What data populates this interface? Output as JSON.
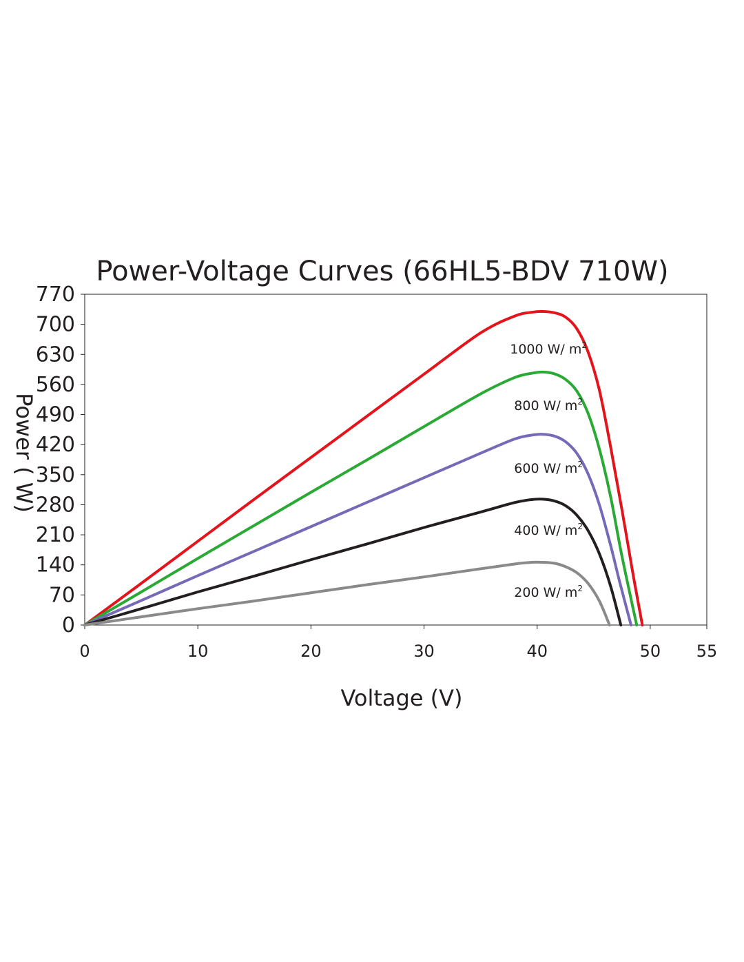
{
  "chart_data": {
    "type": "line",
    "title": "Power-Voltage Curves (66HL5-BDV 710W)",
    "xlabel": "Voltage (V)",
    "ylabel": "Power ( W)",
    "xlim": [
      0,
      55
    ],
    "ylim": [
      0,
      770
    ],
    "xticks": [
      0,
      10,
      20,
      30,
      40,
      50,
      55
    ],
    "yticks": [
      0,
      70,
      140,
      210,
      280,
      350,
      420,
      490,
      560,
      630,
      700,
      770
    ],
    "grid": false,
    "legend": "inline labels",
    "series": [
      {
        "name": "1000 W/ m2",
        "label_main": "1000 W/ m",
        "label_sup": "2",
        "label_at": [
          41.0,
          643
        ],
        "color": "#e3141c",
        "x": [
          0,
          5,
          10,
          15,
          20,
          25,
          30,
          35,
          38,
          39.5,
          40.5,
          41.5,
          42.5,
          43.5,
          44.5,
          45.5,
          46.5,
          47.5,
          48.5,
          49.3
        ],
        "y": [
          0,
          97,
          195,
          293,
          390,
          487,
          584,
          680,
          719,
          728,
          730,
          727,
          717,
          690,
          636,
          547,
          414,
          268,
          115,
          0
        ]
      },
      {
        "name": "800 W/ m2",
        "label_main": "800 W/ m",
        "label_sup": "2",
        "label_at": [
          41.0,
          512
        ],
        "color": "#2aa935",
        "x": [
          0,
          5,
          10,
          15,
          20,
          25,
          30,
          35,
          38,
          39.5,
          40.5,
          41.5,
          42.5,
          43.5,
          44.5,
          45.5,
          46.5,
          47.5,
          48.8
        ],
        "y": [
          0,
          77,
          155,
          232,
          309,
          385,
          462,
          538,
          576,
          586,
          589,
          585,
          572,
          545,
          493,
          410,
          298,
          160,
          0
        ]
      },
      {
        "name": "600 W/ m2",
        "label_main": "600 W/ m",
        "label_sup": "2",
        "label_at": [
          41.0,
          366
        ],
        "color": "#7669b8",
        "x": [
          0,
          5,
          10,
          15,
          20,
          25,
          30,
          35,
          38,
          39.5,
          40.5,
          41.5,
          42.5,
          43.5,
          44.5,
          45.5,
          46.5,
          47.3,
          48.3
        ],
        "y": [
          0,
          57,
          115,
          172,
          229,
          286,
          343,
          400,
          433,
          442,
          444,
          440,
          427,
          400,
          352,
          280,
          185,
          100,
          0
        ]
      },
      {
        "name": "400 W/ m2",
        "label_main": "400 W/ m",
        "label_sup": "2",
        "label_at": [
          41.0,
          221
        ],
        "color": "#231f20",
        "x": [
          0,
          5,
          10,
          15,
          20,
          25,
          30,
          35,
          38,
          39.5,
          40.5,
          41.5,
          42.5,
          43.5,
          44.5,
          45.5,
          46.5,
          47.4
        ],
        "y": [
          0,
          38,
          77,
          114,
          152,
          189,
          227,
          263,
          285,
          292,
          293,
          289,
          278,
          256,
          220,
          166,
          90,
          0
        ]
      },
      {
        "name": "200 W/ m2",
        "label_main": "200 W/ m",
        "label_sup": "2",
        "label_at": [
          41.0,
          77
        ],
        "color": "#8a8a8a",
        "x": [
          0,
          5,
          10,
          15,
          20,
          25,
          30,
          35,
          38,
          39.5,
          40.5,
          41.5,
          42.5,
          43.5,
          44.5,
          45.5,
          46.4
        ],
        "y": [
          0,
          19,
          38,
          56,
          75,
          94,
          112,
          131,
          142,
          146,
          146,
          144,
          136,
          122,
          97,
          56,
          0
        ]
      }
    ]
  }
}
